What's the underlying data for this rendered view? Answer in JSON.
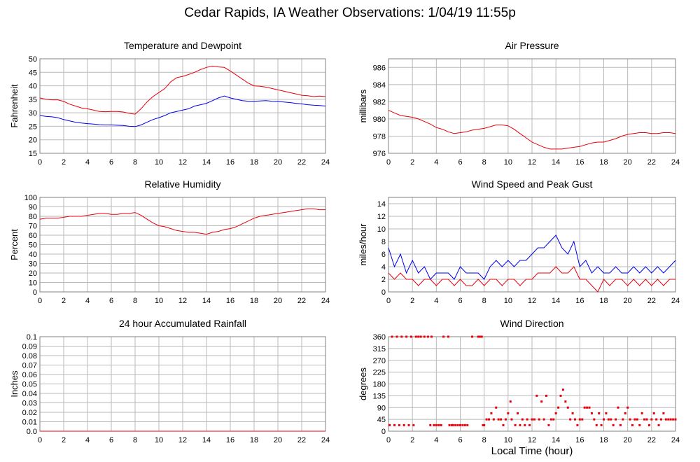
{
  "title": "Cedar Rapids, IA Weather Observations: 1/04/19 11:55p",
  "xlabel": "Local Time (hour)",
  "colors": {
    "red": "#e8000b",
    "blue": "#0000ee",
    "grid": "#b9b9b9"
  },
  "chart_data": [
    {
      "type": "line",
      "title": "Temperature and Dewpoint",
      "ylabel": "Fahrenheit",
      "xlim": [
        0,
        24
      ],
      "ylim": [
        15,
        50
      ],
      "xticks": [
        0,
        2,
        4,
        6,
        8,
        10,
        12,
        14,
        16,
        18,
        20,
        22,
        24
      ],
      "yticks": [
        15,
        20,
        25,
        30,
        35,
        40,
        45,
        50
      ],
      "grid": true,
      "series": [
        {
          "color": "#e8000b",
          "x": [
            0,
            0.5,
            1,
            1.5,
            2,
            2.5,
            3,
            3.5,
            4,
            4.5,
            5,
            5.5,
            6,
            6.5,
            7,
            7.5,
            8,
            8.5,
            9,
            9.5,
            10,
            10.5,
            11,
            11.5,
            12,
            12.5,
            13,
            13.5,
            14,
            14.5,
            15,
            15.5,
            16,
            16.5,
            17,
            17.5,
            18,
            18.5,
            19,
            19.5,
            20,
            20.5,
            21,
            21.5,
            22,
            22.5,
            23,
            23.5,
            24
          ],
          "y": [
            35.5,
            35,
            34.8,
            34.8,
            34.2,
            33.2,
            32.5,
            31.8,
            31.5,
            31,
            30.5,
            30.4,
            30.5,
            30.5,
            30.3,
            29.8,
            29.5,
            31.5,
            34,
            36,
            37.5,
            39,
            41.5,
            43,
            43.5,
            44.2,
            45,
            46,
            46.8,
            47.3,
            47,
            46.8,
            45.5,
            44,
            42.5,
            41,
            40,
            39.8,
            39.5,
            39,
            38.5,
            38,
            37.5,
            37,
            36.5,
            36.3,
            36,
            36.2,
            36
          ]
        },
        {
          "color": "#0000ee",
          "x": [
            0,
            0.5,
            1,
            1.5,
            2,
            2.5,
            3,
            3.5,
            4,
            4.5,
            5,
            5.5,
            6,
            6.5,
            7,
            7.5,
            8,
            8.5,
            9,
            9.5,
            10,
            10.5,
            11,
            11.5,
            12,
            12.5,
            13,
            13.5,
            14,
            14.5,
            15,
            15.5,
            16,
            16.5,
            17,
            17.5,
            18,
            18.5,
            19,
            19.5,
            20,
            20.5,
            21,
            21.5,
            22,
            22.5,
            23,
            23.5,
            24
          ],
          "y": [
            29,
            28.7,
            28.5,
            28.2,
            27.5,
            27,
            26.5,
            26.2,
            26,
            25.8,
            25.6,
            25.5,
            25.5,
            25.4,
            25.3,
            25,
            24.9,
            25.5,
            26.5,
            27.5,
            28.2,
            29,
            30,
            30.5,
            31,
            31.5,
            32.5,
            33,
            33.5,
            34.5,
            35.5,
            36.2,
            35.5,
            35,
            34.5,
            34.3,
            34.3,
            34.4,
            34.5,
            34.3,
            34.2,
            34,
            33.8,
            33.5,
            33.3,
            33,
            32.8,
            32.7,
            32.5
          ]
        }
      ]
    },
    {
      "type": "line",
      "title": "Air Pressure",
      "ylabel": "millibars",
      "xlim": [
        0,
        24
      ],
      "ylim": [
        976,
        987
      ],
      "xticks": [
        0,
        2,
        4,
        6,
        8,
        10,
        12,
        14,
        16,
        18,
        20,
        22,
        24
      ],
      "yticks": [
        976,
        978,
        980,
        982,
        984,
        986
      ],
      "grid": true,
      "series": [
        {
          "color": "#e8000b",
          "x": [
            0,
            0.5,
            1,
            1.5,
            2,
            2.5,
            3,
            3.5,
            4,
            4.5,
            5,
            5.5,
            6,
            6.5,
            7,
            7.5,
            8,
            8.5,
            9,
            9.5,
            10,
            10.5,
            11,
            11.5,
            12,
            12.5,
            13,
            13.5,
            14,
            14.5,
            15,
            15.5,
            16,
            16.5,
            17,
            17.5,
            18,
            18.5,
            19,
            19.5,
            20,
            20.5,
            21,
            21.5,
            22,
            22.5,
            23,
            23.5,
            24
          ],
          "y": [
            981,
            980.7,
            980.4,
            980.3,
            980.2,
            980,
            979.7,
            979.4,
            979,
            978.8,
            978.5,
            978.3,
            978.4,
            978.5,
            978.7,
            978.8,
            978.9,
            979.1,
            979.3,
            979.3,
            979.2,
            978.8,
            978.3,
            977.8,
            977.3,
            977,
            976.7,
            976.5,
            976.5,
            976.5,
            976.6,
            976.7,
            976.8,
            977,
            977.2,
            977.3,
            977.3,
            977.5,
            977.7,
            978,
            978.2,
            978.3,
            978.4,
            978.4,
            978.3,
            978.3,
            978.4,
            978.4,
            978.3
          ]
        }
      ]
    },
    {
      "type": "line",
      "title": "Relative Humidity",
      "ylabel": "Percent",
      "xlim": [
        0,
        24
      ],
      "ylim": [
        0,
        100
      ],
      "xticks": [
        0,
        2,
        4,
        6,
        8,
        10,
        12,
        14,
        16,
        18,
        20,
        22,
        24
      ],
      "yticks": [
        0,
        10,
        20,
        30,
        40,
        50,
        60,
        70,
        80,
        90,
        100
      ],
      "grid": true,
      "series": [
        {
          "color": "#e8000b",
          "x": [
            0,
            0.5,
            1,
            1.5,
            2,
            2.5,
            3,
            3.5,
            4,
            4.5,
            5,
            5.5,
            6,
            6.5,
            7,
            7.5,
            8,
            8.5,
            9,
            9.5,
            10,
            10.5,
            11,
            11.5,
            12,
            12.5,
            13,
            13.5,
            14,
            14.5,
            15,
            15.5,
            16,
            16.5,
            17,
            17.5,
            18,
            18.5,
            19,
            19.5,
            20,
            20.5,
            21,
            21.5,
            22,
            22.5,
            23,
            23.5,
            24
          ],
          "y": [
            77,
            78,
            78,
            78,
            79,
            80,
            80,
            80,
            81,
            82,
            83,
            83,
            82,
            82,
            83,
            83,
            84,
            81,
            77,
            73,
            70,
            69,
            67,
            65,
            64,
            63,
            63,
            62,
            61,
            63,
            64,
            66,
            67,
            69,
            72,
            75,
            78,
            80,
            81,
            82,
            83,
            84,
            85,
            86,
            87,
            88,
            88,
            87,
            87
          ]
        }
      ]
    },
    {
      "type": "line",
      "title": "Wind Speed and Peak Gust",
      "ylabel": "miles/hour",
      "xlim": [
        0,
        24
      ],
      "ylim": [
        0,
        15
      ],
      "xticks": [
        0,
        2,
        4,
        6,
        8,
        10,
        12,
        14,
        16,
        18,
        20,
        22,
        24
      ],
      "yticks": [
        0,
        2,
        4,
        6,
        8,
        10,
        12,
        14
      ],
      "grid": true,
      "series": [
        {
          "color": "#0000ee",
          "x": [
            0,
            0.5,
            1,
            1.5,
            2,
            2.5,
            3,
            3.5,
            4,
            4.5,
            5,
            5.5,
            6,
            6.5,
            7,
            7.5,
            8,
            8.5,
            9,
            9.5,
            10,
            10.5,
            11,
            11.5,
            12,
            12.5,
            13,
            13.5,
            14,
            14.5,
            15,
            15.5,
            16,
            16.5,
            17,
            17.5,
            18,
            18.5,
            19,
            19.5,
            20,
            20.5,
            21,
            21.5,
            22,
            22.5,
            23,
            23.5,
            24
          ],
          "y": [
            7,
            4,
            6,
            3,
            5,
            3,
            4,
            2,
            3,
            3,
            3,
            2,
            4,
            3,
            3,
            3,
            2,
            4,
            5,
            4,
            5,
            4,
            5,
            5,
            6,
            7,
            7,
            8,
            9,
            7,
            6,
            8,
            4,
            5,
            3,
            4,
            3,
            3,
            4,
            3,
            3,
            4,
            3,
            4,
            3,
            4,
            3,
            4,
            5
          ]
        },
        {
          "color": "#e8000b",
          "x": [
            0,
            0.5,
            1,
            1.5,
            2,
            2.5,
            3,
            3.5,
            4,
            4.5,
            5,
            5.5,
            6,
            6.5,
            7,
            7.5,
            8,
            8.5,
            9,
            9.5,
            10,
            10.5,
            11,
            11.5,
            12,
            12.5,
            13,
            13.5,
            14,
            14.5,
            15,
            15.5,
            16,
            16.5,
            17,
            17.5,
            18,
            18.5,
            19,
            19.5,
            20,
            20.5,
            21,
            21.5,
            22,
            22.5,
            23,
            23.5,
            24
          ],
          "y": [
            3,
            2,
            3,
            2,
            2,
            1,
            2,
            2,
            1,
            2,
            2,
            1,
            2,
            1,
            1,
            2,
            1,
            2,
            2,
            1,
            2,
            2,
            1,
            2,
            2,
            3,
            3,
            3,
            4,
            3,
            3,
            4,
            2,
            2,
            1,
            0,
            2,
            1,
            2,
            2,
            1,
            2,
            1,
            2,
            1,
            2,
            1,
            2,
            2
          ]
        }
      ]
    },
    {
      "type": "line",
      "title": "24 hour Accumulated Rainfall",
      "ylabel": "Inches",
      "xlim": [
        0,
        24
      ],
      "ylim": [
        0,
        0.1
      ],
      "xticks": [
        0,
        2,
        4,
        6,
        8,
        10,
        12,
        14,
        16,
        18,
        20,
        22,
        24
      ],
      "yticks": [
        0.0,
        0.01,
        0.02,
        0.03,
        0.04,
        0.05,
        0.06,
        0.07,
        0.08,
        0.09,
        0.1
      ],
      "ytick_labels": [
        "0.0",
        "0.01",
        "0.02",
        "0.03",
        "0.04",
        "0.05",
        "0.06",
        "0.07",
        "0.08",
        "0.09",
        "0.1"
      ],
      "grid": true,
      "series": [
        {
          "color": "#e8000b",
          "x": [
            0,
            24
          ],
          "y": [
            0,
            0
          ]
        }
      ]
    },
    {
      "type": "scatter",
      "title": "Wind Direction",
      "ylabel": "degrees",
      "xlim": [
        0,
        24
      ],
      "ylim": [
        0,
        360
      ],
      "xticks": [
        0,
        2,
        4,
        6,
        8,
        10,
        12,
        14,
        16,
        18,
        20,
        22,
        24
      ],
      "yticks": [
        0,
        45,
        90,
        135,
        180,
        225,
        270,
        315,
        360
      ],
      "grid": true,
      "series": [
        {
          "color": "#e8000b",
          "x": [
            0.1,
            0.3,
            0.5,
            0.7,
            0.9,
            1.1,
            1.3,
            1.5,
            1.7,
            1.9,
            2.1,
            2.3,
            2.5,
            2.7,
            3.0,
            3.3,
            3.5,
            3.6,
            3.8,
            4.0,
            4.2,
            4.4,
            4.6,
            5.0,
            5.1,
            5.3,
            5.4,
            5.6,
            5.8,
            6.0,
            6.2,
            6.4,
            6.6,
            7.0,
            7.5,
            7.6,
            7.7,
            7.8,
            7.9,
            8.0,
            8.2,
            8.4,
            8.6,
            8.8,
            9.0,
            9.2,
            9.4,
            9.6,
            9.8,
            10.0,
            10.2,
            10.3,
            10.6,
            10.8,
            11.0,
            11.2,
            11.4,
            11.6,
            11.8,
            12.0,
            12.2,
            12.4,
            12.6,
            12.8,
            13.0,
            13.2,
            13.4,
            13.6,
            13.8,
            14.0,
            14.2,
            14.4,
            14.6,
            14.8,
            15.0,
            15.2,
            15.4,
            15.6,
            15.8,
            16.0,
            16.2,
            16.4,
            16.6,
            16.8,
            17.0,
            17.2,
            17.4,
            17.6,
            17.8,
            18.0,
            18.2,
            18.4,
            18.6,
            18.8,
            19.0,
            19.2,
            19.4,
            19.6,
            19.8,
            20.0,
            20.2,
            20.4,
            20.6,
            20.8,
            21.0,
            21.2,
            21.4,
            21.6,
            21.8,
            22.0,
            22.2,
            22.4,
            22.6,
            22.8,
            23.0,
            23.2,
            23.4,
            23.6,
            23.8,
            24.0
          ],
          "y": [
            23,
            360,
            23,
            360,
            23,
            360,
            23,
            360,
            23,
            360,
            23,
            360,
            360,
            360,
            360,
            360,
            23,
            360,
            23,
            23,
            23,
            23,
            360,
            360,
            23,
            23,
            23,
            23,
            23,
            23,
            23,
            23,
            23,
            360,
            360,
            360,
            360,
            360,
            23,
            23,
            45,
            45,
            68,
            45,
            90,
            45,
            45,
            23,
            45,
            68,
            113,
            45,
            23,
            68,
            23,
            45,
            23,
            45,
            23,
            45,
            45,
            135,
            45,
            113,
            45,
            135,
            23,
            45,
            45,
            68,
            90,
            135,
            158,
            113,
            90,
            45,
            68,
            45,
            23,
            45,
            45,
            90,
            90,
            90,
            68,
            45,
            23,
            68,
            23,
            45,
            68,
            45,
            45,
            23,
            45,
            90,
            23,
            45,
            68,
            90,
            45,
            23,
            45,
            45,
            23,
            68,
            45,
            45,
            23,
            45,
            68,
            45,
            23,
            45,
            68,
            45,
            45,
            45,
            45,
            45
          ]
        }
      ]
    }
  ]
}
